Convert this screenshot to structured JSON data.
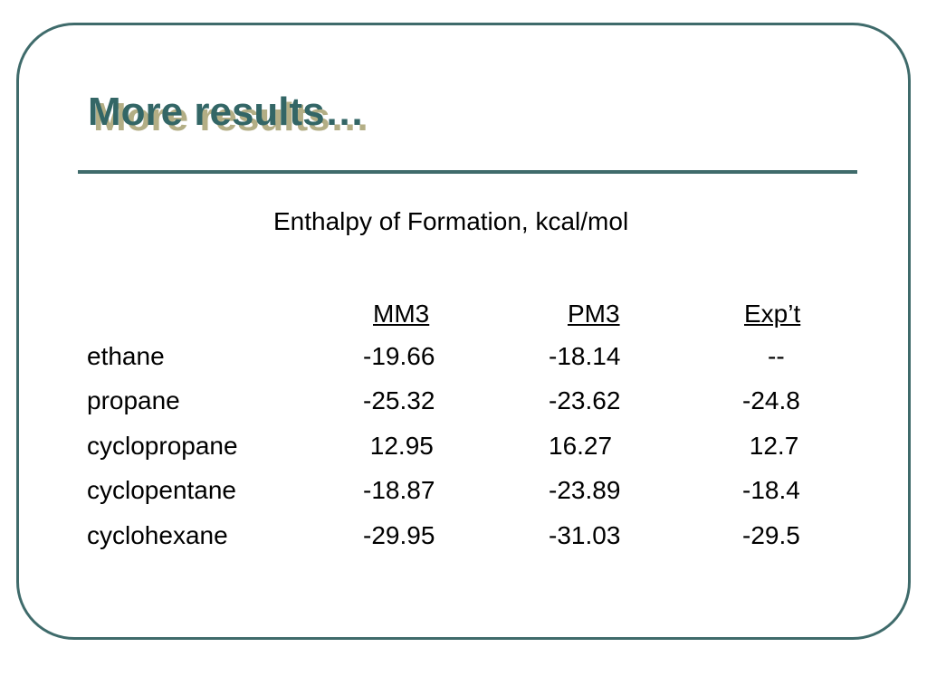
{
  "slide": {
    "title": "More results…",
    "table_title": "Enthalpy of Formation, kcal/mol",
    "headers": {
      "mm3": "MM3",
      "pm3": "PM3",
      "exp": "Exp’t"
    },
    "rows": [
      {
        "name": "ethane",
        "mm3": "-19.66",
        "pm3": "-18.14",
        "exp": "--"
      },
      {
        "name": "propane",
        "mm3": "-25.32",
        "pm3": "-23.62",
        "exp": "-24.8"
      },
      {
        "name": "cyclopropane",
        "mm3": " 12.95",
        "pm3": "16.27",
        "exp": " 12.7"
      },
      {
        "name": "cyclopentane",
        "mm3": "-18.87",
        "pm3": "-23.89",
        "exp": "-18.4"
      },
      {
        "name": "cyclohexane",
        "mm3": "-29.95",
        "pm3": "-31.03",
        "exp": "-29.5"
      }
    ]
  }
}
